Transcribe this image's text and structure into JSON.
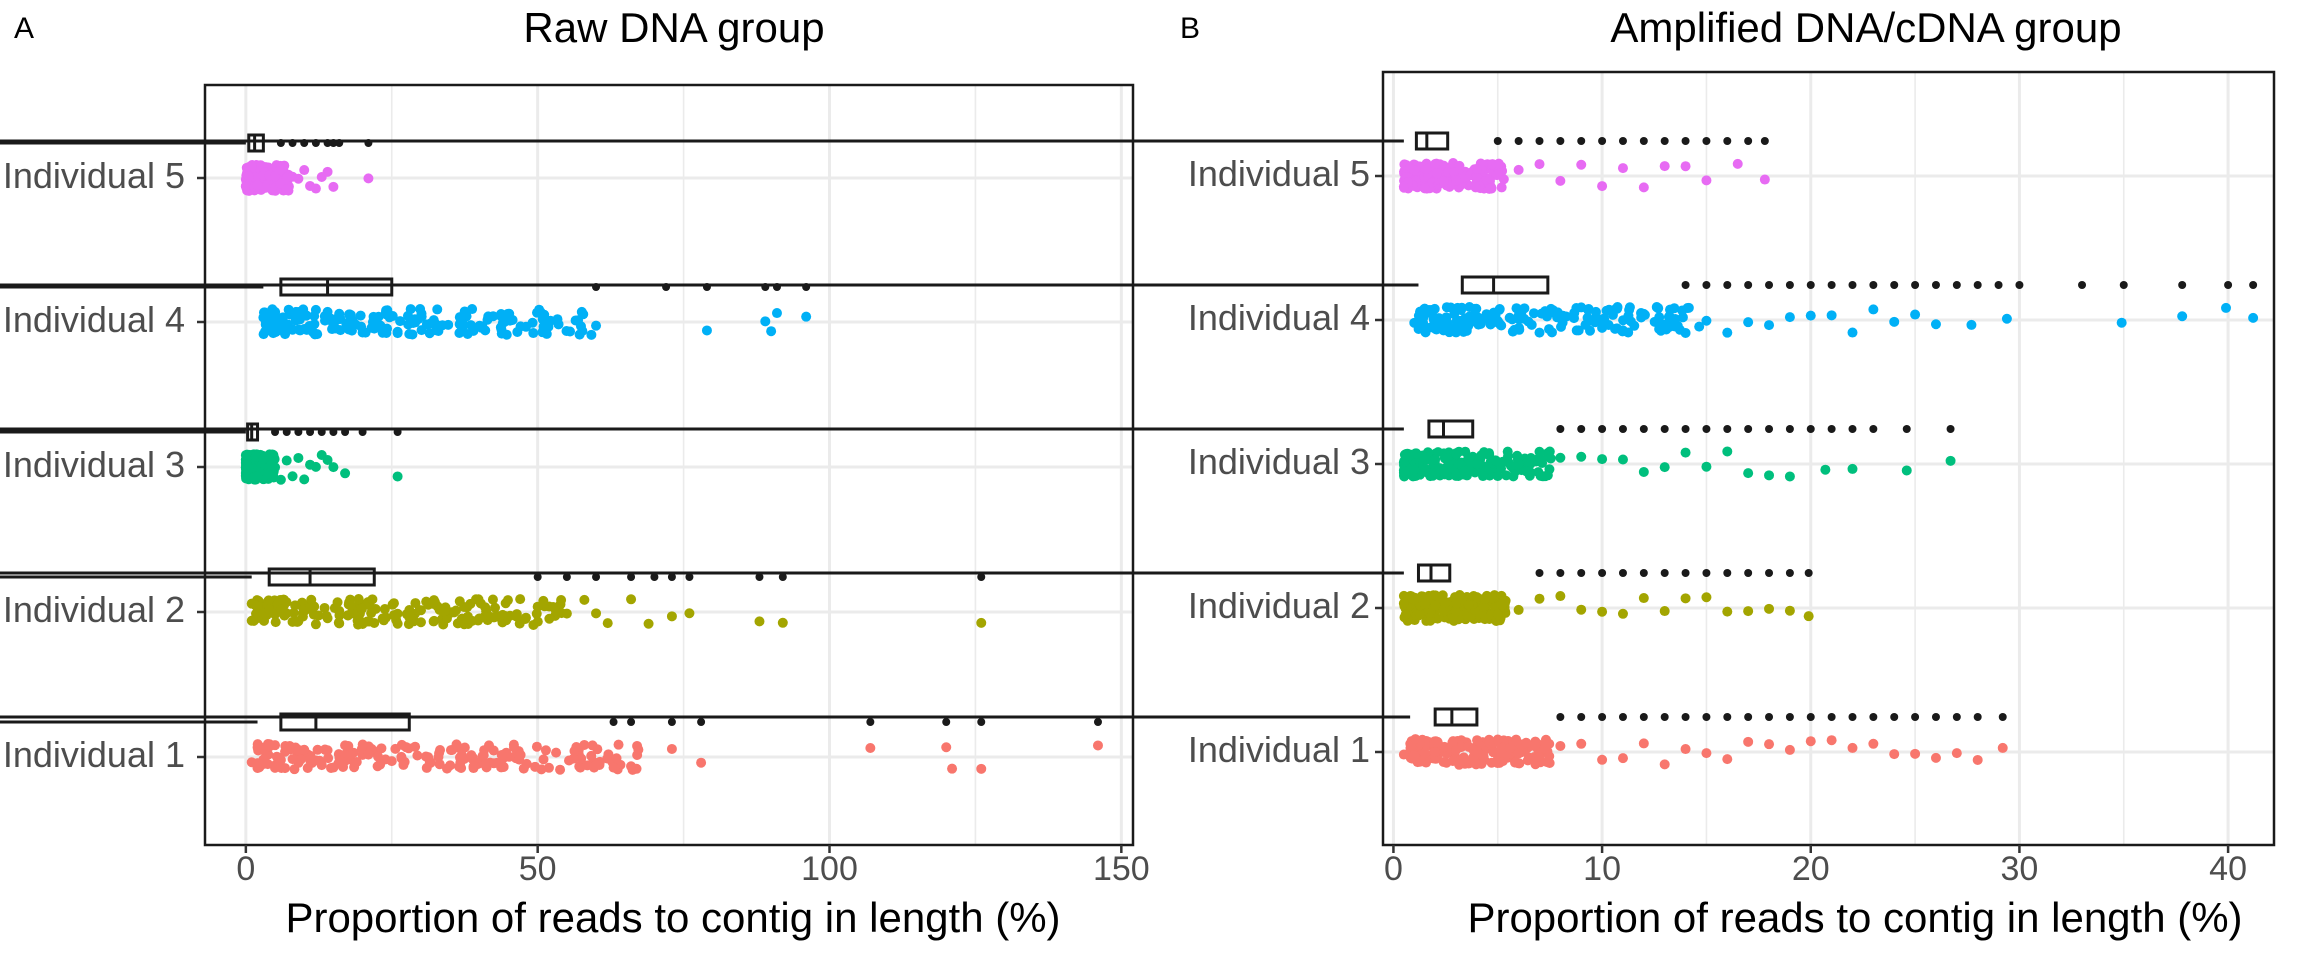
{
  "figure": {
    "panels": [
      {
        "letter": "A",
        "title": "Raw DNA group",
        "xlabel": "Proportion of reads to contig in length (%)"
      },
      {
        "letter": "B",
        "title": "Amplified DNA/cDNA group",
        "xlabel": "Proportion of reads to contig in length (%)"
      }
    ]
  },
  "chart_data": [
    {
      "type": "raincloud",
      "title": "Raw DNA group",
      "xlabel": "Proportion of reads to contig in length (%)",
      "ylabel": "",
      "xlim": [
        -7,
        152
      ],
      "xticks": [
        0,
        50,
        100,
        150
      ],
      "grid": true,
      "categories": [
        "Individual 1",
        "Individual 2",
        "Individual 3",
        "Individual 4",
        "Individual 5"
      ],
      "colors": [
        "#F8766D",
        "#A3A500",
        "#00BF7D",
        "#00B0F6",
        "#E76BF3"
      ],
      "series": [
        {
          "name": "Individual 1",
          "box": {
            "min": 2,
            "q1": 6,
            "median": 12,
            "q3": 28,
            "whisker_end": 146
          },
          "outliers": [
            63,
            66,
            73,
            78,
            107,
            120,
            126,
            146
          ],
          "points": [
            1,
            2,
            3,
            4,
            5,
            6,
            7,
            8,
            9,
            10,
            11,
            12,
            13,
            14,
            15,
            17,
            19,
            21,
            23,
            25,
            27,
            29,
            31,
            33,
            35,
            37,
            39,
            41,
            43,
            63,
            66,
            73,
            78,
            107,
            120,
            121,
            126,
            146
          ]
        },
        {
          "name": "Individual 2",
          "box": {
            "min": 1,
            "q1": 4,
            "median": 11,
            "q3": 22,
            "whisker_end": 126
          },
          "outliers": [
            50,
            55,
            60,
            66,
            70,
            73,
            76,
            88,
            92,
            126
          ],
          "points": [
            1,
            2,
            3,
            4,
            5,
            6,
            7,
            8,
            9,
            10,
            11,
            12,
            14,
            16,
            18,
            20,
            22,
            24,
            26,
            28,
            30,
            32,
            34,
            36,
            38,
            40,
            42,
            44,
            47,
            50,
            52,
            55,
            58,
            60,
            62,
            66,
            69,
            73,
            76,
            88,
            92,
            126
          ]
        },
        {
          "name": "Individual 3",
          "box": {
            "min": 0,
            "q1": 0.3,
            "median": 1,
            "q3": 2,
            "whisker_end": 26
          },
          "outliers": [
            5,
            7,
            9,
            11,
            13,
            15,
            17,
            20,
            26
          ],
          "points": [
            0,
            0.5,
            1,
            1.5,
            2,
            3,
            4,
            5,
            6,
            7,
            8,
            9,
            10,
            11,
            12,
            13,
            14,
            15,
            17,
            26
          ]
        },
        {
          "name": "Individual 4",
          "box": {
            "min": 3,
            "q1": 6,
            "median": 14,
            "q3": 25,
            "whisker_end": 96
          },
          "outliers": [
            60,
            72,
            79,
            89,
            91,
            96
          ],
          "points": [
            3,
            4,
            5,
            6,
            8,
            10,
            12,
            14,
            16,
            18,
            20,
            22,
            24,
            26,
            28,
            38,
            39,
            48,
            51,
            60,
            79,
            89,
            90,
            91,
            96
          ]
        },
        {
          "name": "Individual 5",
          "box": {
            "min": 0,
            "q1": 0.5,
            "median": 1.5,
            "q3": 3,
            "whisker_end": 21
          },
          "outliers": [
            6,
            8,
            10,
            12,
            14,
            15,
            16,
            21
          ],
          "points": [
            0,
            0.5,
            1,
            1.5,
            2,
            3,
            4,
            5,
            6,
            7,
            8,
            9,
            10,
            11,
            12,
            13,
            14,
            15,
            21
          ]
        }
      ]
    },
    {
      "type": "raincloud",
      "title": "Amplified DNA/cDNA group",
      "xlabel": "Proportion of reads to contig in length (%)",
      "ylabel": "",
      "xlim": [
        -0.5,
        42.2
      ],
      "xticks": [
        0,
        10,
        20,
        30,
        40
      ],
      "grid": true,
      "categories": [
        "Individual 1",
        "Individual 2",
        "Individual 3",
        "Individual 4",
        "Individual 5"
      ],
      "colors": [
        "#F8766D",
        "#A3A500",
        "#00BF7D",
        "#00B0F6",
        "#E76BF3"
      ],
      "series": [
        {
          "name": "Individual 1",
          "box": {
            "min": 0.8,
            "q1": 2,
            "median": 2.8,
            "q3": 4,
            "whisker_end": 29.2
          },
          "outliers": [
            8,
            9,
            10,
            11,
            12,
            13,
            14,
            15,
            16,
            17,
            18,
            19,
            20,
            21,
            22,
            23,
            24,
            25,
            26,
            27,
            28,
            29.2
          ],
          "points": [
            0.5,
            1,
            1.5,
            2,
            3,
            4,
            5,
            6,
            7,
            8,
            9,
            10,
            11,
            12,
            13,
            14,
            15,
            16,
            17,
            18,
            19,
            20,
            21,
            22,
            23,
            24,
            25,
            26,
            27,
            28,
            29.2
          ]
        },
        {
          "name": "Individual 2",
          "box": {
            "min": 0.5,
            "q1": 1.2,
            "median": 1.8,
            "q3": 2.7,
            "whisker_end": 19.9
          },
          "outliers": [
            7,
            8,
            9,
            10,
            11,
            12,
            13,
            14,
            15,
            16,
            17,
            18,
            19,
            19.9
          ],
          "points": [
            0.5,
            1,
            1.5,
            2,
            3,
            4,
            5,
            6,
            7,
            8,
            9,
            10,
            11,
            12,
            13,
            14,
            15,
            16,
            17,
            18,
            19,
            19.9
          ]
        },
        {
          "name": "Individual 3",
          "box": {
            "min": 0.5,
            "q1": 1.7,
            "median": 2.4,
            "q3": 3.8,
            "whisker_end": 26.7
          },
          "outliers": [
            8,
            9,
            10,
            11,
            12,
            13,
            14,
            15,
            16,
            17,
            18,
            19,
            20,
            21,
            22,
            23,
            24.6,
            26.7
          ],
          "points": [
            0.5,
            1,
            1.5,
            2,
            3,
            4,
            5,
            6,
            7,
            8,
            9,
            10,
            11,
            12,
            13,
            14,
            15,
            16,
            17,
            18,
            19,
            20.7,
            22,
            24.6,
            26.7
          ]
        },
        {
          "name": "Individual 4",
          "box": {
            "min": 1.2,
            "q1": 3.3,
            "median": 4.8,
            "q3": 7.4,
            "whisker_end": 41.2
          },
          "outliers": [
            14,
            15,
            16,
            17,
            18,
            19,
            20,
            21,
            22,
            23,
            24,
            25,
            26,
            27,
            28,
            29,
            30,
            33,
            35,
            37.8,
            40,
            41.2
          ],
          "points": [
            1,
            2,
            3,
            4,
            5,
            6,
            7,
            8,
            9,
            10,
            11,
            12,
            13,
            14,
            15,
            16,
            17,
            18,
            19,
            20,
            21,
            22,
            23,
            24,
            25,
            26,
            27.7,
            29.4,
            34.9,
            37.8,
            39.9,
            41.2
          ]
        },
        {
          "name": "Individual 5",
          "box": {
            "min": 0.5,
            "q1": 1.1,
            "median": 1.6,
            "q3": 2.6,
            "whisker_end": 17.8
          },
          "outliers": [
            5,
            6,
            7,
            8,
            9,
            10,
            11,
            12,
            13,
            14,
            15,
            16,
            17,
            17.8
          ],
          "points": [
            0.5,
            1,
            1.5,
            2,
            3,
            4,
            5,
            6,
            7,
            8,
            9,
            10,
            11,
            12,
            13,
            14,
            15,
            16.5,
            17.8
          ]
        }
      ]
    }
  ]
}
